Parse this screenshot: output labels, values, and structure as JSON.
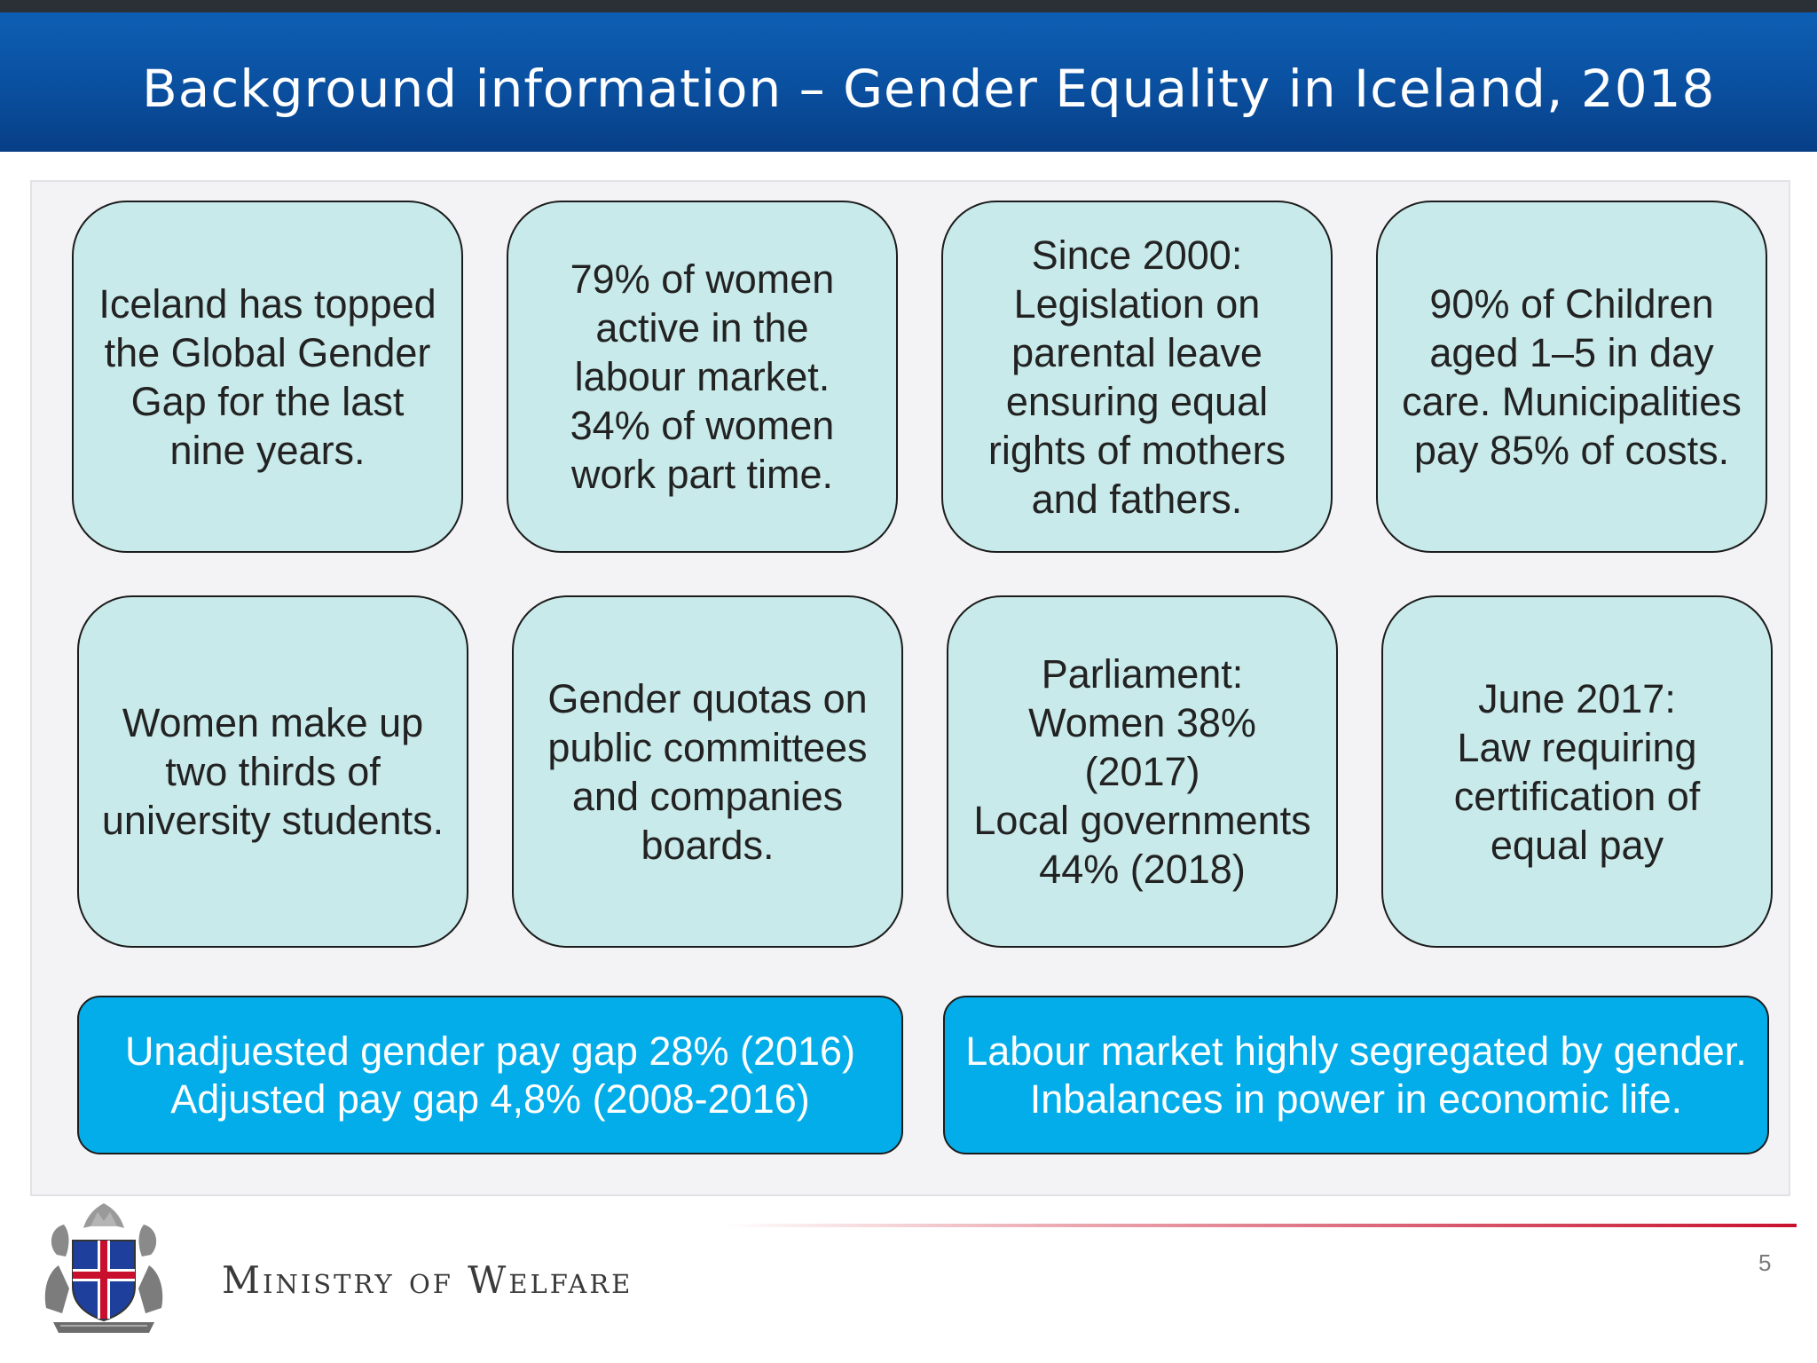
{
  "slide": {
    "title": "Background information – Gender Equality in Iceland, 2018",
    "page_number": "5"
  },
  "boxes_row1": [
    {
      "text": "Iceland has topped\nthe Global Gender\nGap for the last\nnine years."
    },
    {
      "text": "79% of women\nactive in the\nlabour market.\n34% of women\nwork part time."
    },
    {
      "text": "Since 2000:\nLegislation on\nparental leave\nensuring equal\nrights of mothers\nand fathers."
    },
    {
      "text": "90% of Children\naged 1–5 in day\ncare. Municipalities\npay 85% of costs."
    }
  ],
  "boxes_row2": [
    {
      "text": "Women make up\ntwo thirds of\nuniversity students."
    },
    {
      "text": "Gender quotas on\npublic committees\nand companies\nboards."
    },
    {
      "text": "Parliament:\nWomen 38%\n(2017)\nLocal governments\n44% (2018)"
    },
    {
      "text": "June 2017:\nLaw requiring\ncertification of\nequal pay"
    }
  ],
  "boxes_blue": [
    {
      "text": "Unadjuested gender pay gap 28% (2016)\nAdjusted pay gap 4,8% (2008-2016)"
    },
    {
      "text": "Labour market highly segregated by gender.\nInbalances in power in economic life."
    }
  ],
  "footer": {
    "ministry": "Ministry of Welfare"
  },
  "colors": {
    "header": "#0a4f9f",
    "box_fill": "#c9eaea",
    "blue_box_fill": "#03ade9",
    "accent_line": "#c8102e"
  }
}
